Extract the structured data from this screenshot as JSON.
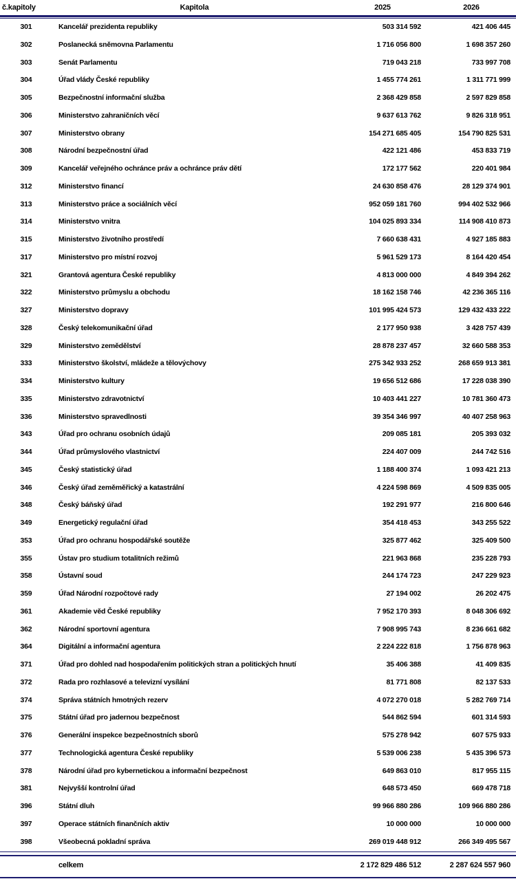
{
  "table": {
    "headers": {
      "num": "č.kapitoly",
      "name": "Kapitola",
      "y2025": "2025",
      "y2026": "2026"
    },
    "rows": [
      [
        "301",
        "Kancelář prezidenta republiky",
        "503 314 592",
        "421 406 445"
      ],
      [
        "302",
        "Poslanecká sněmovna Parlamentu",
        "1 716 056 800",
        "1 698 357 260"
      ],
      [
        "303",
        "Senát Parlamentu",
        "719 043 218",
        "733 997 708"
      ],
      [
        "304",
        "Úřad vlády České republiky",
        "1 455 774 261",
        "1 311 771 999"
      ],
      [
        "305",
        "Bezpečnostní informační služba",
        "2 368 429 858",
        "2 597 829 858"
      ],
      [
        "306",
        "Ministerstvo zahraničních věcí",
        "9 637 613 762",
        "9 826 318 951"
      ],
      [
        "307",
        "Ministerstvo obrany",
        "154 271 685 405",
        "154 790 825 531"
      ],
      [
        "308",
        "Národní bezpečnostní úřad",
        "422 121 486",
        "453 833 719"
      ],
      [
        "309",
        "Kancelář veřejného ochránce práv a ochránce práv dětí",
        "172 177 562",
        "220 401 984"
      ],
      [
        "312",
        "Ministerstvo financí",
        "24 630 858 476",
        "28 129 374 901"
      ],
      [
        "313",
        "Ministerstvo práce a sociálních věcí",
        "952 059 181 760",
        "994 402 532 966"
      ],
      [
        "314",
        "Ministerstvo vnitra",
        "104 025 893 334",
        "114 908 410 873"
      ],
      [
        "315",
        "Ministerstvo životního prostředí",
        "7 660 638 431",
        "4 927 185 883"
      ],
      [
        "317",
        "Ministerstvo pro místní rozvoj",
        "5 961 529 173",
        "8 164 420 454"
      ],
      [
        "321",
        "Grantová agentura České republiky",
        "4 813 000 000",
        "4 849 394 262"
      ],
      [
        "322",
        "Ministerstvo průmyslu a obchodu",
        "18 162 158 746",
        "42 236 365 116"
      ],
      [
        "327",
        "Ministerstvo dopravy",
        "101 995 424 573",
        "129 432 433 222"
      ],
      [
        "328",
        "Český telekomunikační úřad",
        "2 177 950 938",
        "3 428 757 439"
      ],
      [
        "329",
        "Ministerstvo zemědělství",
        "28 878 237 457",
        "32 660 588 353"
      ],
      [
        "333",
        "Ministerstvo školství, mládeže a tělovýchovy",
        "275 342 933 252",
        "268 659 913 381"
      ],
      [
        "334",
        "Ministerstvo kultury",
        "19 656 512 686",
        "17 228 038 390"
      ],
      [
        "335",
        "Ministerstvo zdravotnictví",
        "10 403 441 227",
        "10 781 360 473"
      ],
      [
        "336",
        "Ministerstvo spravedlnosti",
        "39 354 346 997",
        "40 407 258 963"
      ],
      [
        "343",
        "Úřad pro ochranu osobních údajů",
        "209 085 181",
        "205 393 032"
      ],
      [
        "344",
        "Úřad průmyslového vlastnictví",
        "224 407 009",
        "244 742 516"
      ],
      [
        "345",
        "Český statistický úřad",
        "1 188 400 374",
        "1 093 421 213"
      ],
      [
        "346",
        "Český úřad zeměměřický a katastrální",
        "4 224 598 869",
        "4 509 835 005"
      ],
      [
        "348",
        "Český báňský úřad",
        "192 291 977",
        "216 800 646"
      ],
      [
        "349",
        "Energetický regulační úřad",
        "354 418 453",
        "343 255 522"
      ],
      [
        "353",
        "Úřad pro ochranu hospodářské soutěže",
        "325 877 462",
        "325 409 500"
      ],
      [
        "355",
        "Ústav pro studium totalitních režimů",
        "221 963 868",
        "235 228 793"
      ],
      [
        "358",
        "Ústavní soud",
        "244 174 723",
        "247 229 923"
      ],
      [
        "359",
        "Úřad Národní rozpočtové rady",
        "27 194 002",
        "26 202 475"
      ],
      [
        "361",
        "Akademie věd České republiky",
        "7 952 170 393",
        "8 048 306 692"
      ],
      [
        "362",
        "Národní sportovní agentura",
        "7 908 995 743",
        "8 236 661 682"
      ],
      [
        "364",
        "Digitální a informační agentura",
        "2 224 222 818",
        "1 756 878 963"
      ],
      [
        "371",
        "Úřad pro dohled nad hospodařením politických stran a politických hnutí",
        "35 406 388",
        "41 409 835"
      ],
      [
        "372",
        "Rada pro rozhlasové a televizní vysílání",
        "81 771 808",
        "82 137 533"
      ],
      [
        "374",
        "Správa státních hmotných rezerv",
        "4 072 270 018",
        "5 282 769 714"
      ],
      [
        "375",
        "Státní úřad pro jadernou bezpečnost",
        "544 862 594",
        "601 314 593"
      ],
      [
        "376",
        "Generální inspekce bezpečnostních sborů",
        "575 278 942",
        "607 575 933"
      ],
      [
        "377",
        "Technologická agentura České republiky",
        "5 539 006 238",
        "5 435 396 573"
      ],
      [
        "378",
        "Národní úřad pro kybernetickou a informační bezpečnost",
        "649 863 010",
        "817 955 115"
      ],
      [
        "381",
        "Nejvyšší kontrolní úřad",
        "648 573 450",
        "669 478 718"
      ],
      [
        "396",
        "Státní dluh",
        "99 966 880 286",
        "109 966 880 286"
      ],
      [
        "397",
        "Operace státních finančních aktiv",
        "10 000 000",
        "10 000 000"
      ],
      [
        "398",
        "Všeobecná pokladní správa",
        "269 019 448 912",
        "266 349 495 567"
      ]
    ],
    "total": {
      "label": "celkem",
      "y2025": "2 172 829 486 512",
      "y2026": "2 287 624 557 960"
    }
  },
  "colors": {
    "rule_navy": "#1c1c6e",
    "text": "#000000",
    "background": "#ffffff"
  }
}
